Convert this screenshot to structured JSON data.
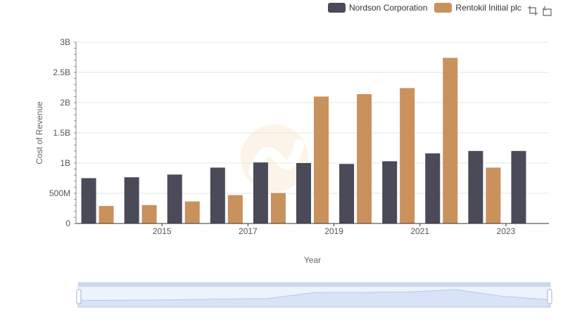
{
  "legend": {
    "items": [
      {
        "label": "Nordson Corporation",
        "color": "#4a4a58"
      },
      {
        "label": "Rentokil Initial plc",
        "color": "#c9915c"
      }
    ]
  },
  "toolbar": {
    "icons": [
      "zoom-icon",
      "restore-icon"
    ]
  },
  "chart_data": {
    "type": "bar",
    "x": [
      2014,
      2015,
      2016,
      2017,
      2018,
      2019,
      2020,
      2021,
      2022,
      2023,
      2024
    ],
    "x_tick_labels": [
      "2015",
      "2017",
      "2019",
      "2021",
      "2023"
    ],
    "series": [
      {
        "name": "Nordson Corporation",
        "color": "#4a4a58",
        "values": [
          750000000,
          765000000,
          810000000,
          925000000,
          1010000000,
          1000000000,
          985000000,
          1030000000,
          1160000000,
          1200000000,
          1200000000
        ]
      },
      {
        "name": "Rentokil Initial plc",
        "color": "#c9915c",
        "values": [
          290000000,
          305000000,
          365000000,
          470000000,
          505000000,
          2100000000,
          2140000000,
          2240000000,
          2740000000,
          925000000,
          null
        ]
      }
    ],
    "xlabel": "Year",
    "ylabel": "Cost of Revenue",
    "ylim": [
      0,
      3000000000
    ],
    "y_ticks": [
      {
        "value": 0,
        "label": "0"
      },
      {
        "value": 500000000,
        "label": "500M"
      },
      {
        "value": 1000000000,
        "label": "1B"
      },
      {
        "value": 1500000000,
        "label": "1.5B"
      },
      {
        "value": 2000000000,
        "label": "2B"
      },
      {
        "value": 2500000000,
        "label": "2.5B"
      },
      {
        "value": 3000000000,
        "label": "3B"
      }
    ],
    "grid": true,
    "legend_position": "top-right",
    "datazoom": {
      "start": 0,
      "end": 1
    }
  }
}
